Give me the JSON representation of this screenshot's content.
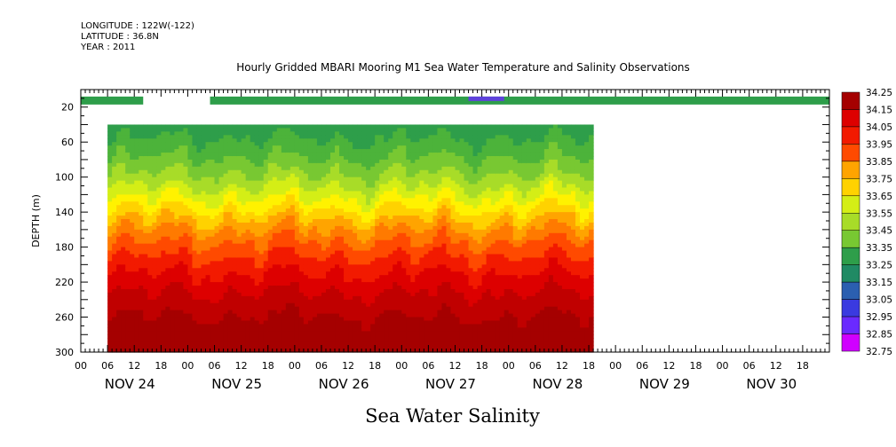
{
  "header": {
    "longitude_line": "LONGITUDE : 122W(-122)",
    "latitude_line": "LATITUDE : 36.8N",
    "year_line": "YEAR : 2011"
  },
  "chart_data": {
    "type": "heatmap",
    "title": "Hourly Gridded MBARI Mooring M1 Sea Water Temperature and Salinity Observations",
    "subtitle": "Sea Water Salinity",
    "ylabel": "DEPTH (m)",
    "xlabel": "",
    "x_unit": "hours since NOV 24 00:00",
    "xlim": [
      0,
      168
    ],
    "ylim": [
      0,
      300
    ],
    "y_inverted": true,
    "yticks": [
      20,
      60,
      100,
      140,
      180,
      220,
      260,
      300
    ],
    "xtick_hours": [
      "00",
      "06",
      "12",
      "18"
    ],
    "day_labels": [
      "NOV 24",
      "NOV 25",
      "NOV 26",
      "NOV 27",
      "NOV 28",
      "NOV 29",
      "NOV 30"
    ],
    "colorbar": {
      "levels": [
        34.25,
        34.15,
        34.05,
        33.95,
        33.85,
        33.75,
        33.65,
        33.55,
        33.45,
        33.35,
        33.25,
        33.15,
        33.05,
        32.95,
        32.85,
        32.75
      ],
      "colors": [
        "#a50000",
        "#c00000",
        "#dd0000",
        "#f21a00",
        "#ff4a00",
        "#ff7a00",
        "#ffa400",
        "#ffd200",
        "#fff200",
        "#d4ee16",
        "#a8dc28",
        "#78c832",
        "#4cb33a",
        "#2e9e4a",
        "#208a64",
        "#1e7a7e"
      ],
      "low_colors": [
        "#2b5fb0",
        "#3a3ae0",
        "#6a2aff",
        "#a020f0",
        "#d000ff"
      ]
    },
    "surface_layer": {
      "depth": 10,
      "segments": [
        [
          0,
          14
        ],
        [
          29,
          168
        ]
      ],
      "value": 33.25,
      "low_anomaly": {
        "x_range": [
          87,
          95
        ],
        "value": 32.95
      }
    },
    "profile": {
      "depth_range": [
        40,
        300
      ],
      "x_range": [
        6,
        115
      ],
      "depths": [
        40,
        60,
        80,
        100,
        120,
        140,
        160,
        180,
        200,
        220,
        240,
        260,
        280,
        300
      ],
      "mean_values": [
        33.28,
        33.33,
        33.4,
        33.48,
        33.58,
        33.7,
        33.82,
        33.92,
        34.0,
        34.07,
        34.13,
        34.18,
        34.2,
        34.2
      ]
    }
  }
}
